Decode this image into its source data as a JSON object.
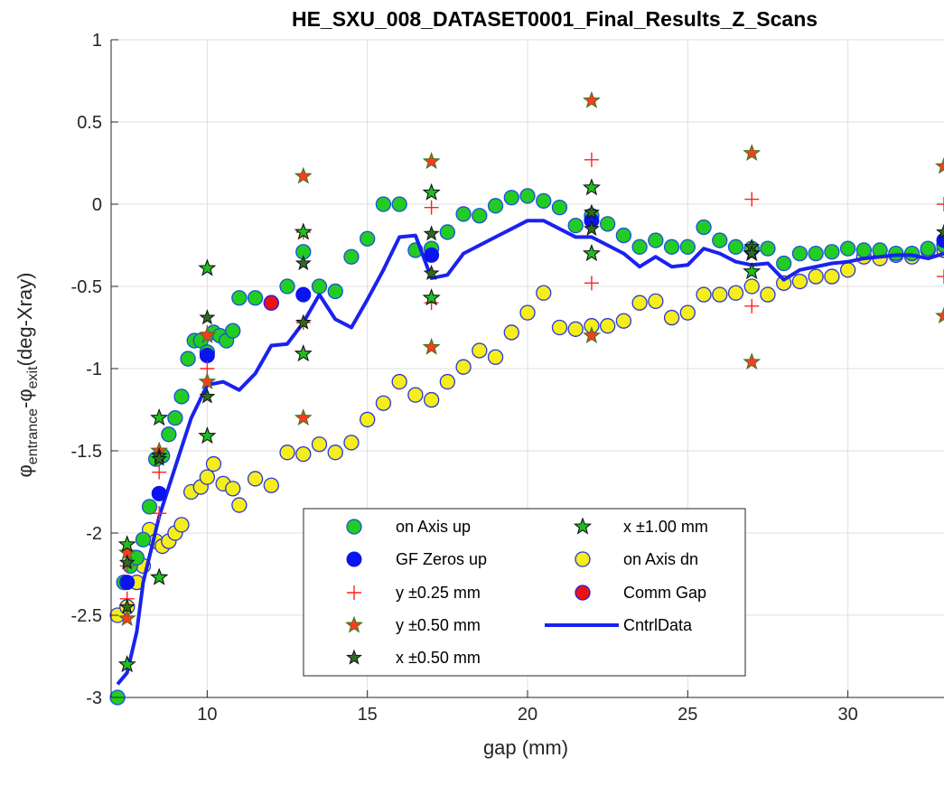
{
  "chart_data": {
    "type": "scatter",
    "title": "HE_SXU_008_DATASET0001_Final_Results_Z_Scans",
    "xlabel": "gap (mm)",
    "ylabel": {
      "main": "φ",
      "sub1": "entrance",
      "minus": "-φ",
      "sub2": "exit",
      "unit": "(deg-Xray)"
    },
    "xlim": [
      7,
      33
    ],
    "ylim": [
      -3,
      1
    ],
    "x_ticks": [
      10,
      15,
      20,
      25,
      30
    ],
    "x_tick_labels": [
      "10",
      "15",
      "20",
      "25",
      "30"
    ],
    "y_ticks": [
      1,
      0.5,
      0,
      -0.5,
      -1,
      -1.5,
      -2,
      -2.5,
      -3
    ],
    "y_tick_labels": [
      "1",
      "0.5",
      "0",
      "-0.5",
      "-1",
      "-1.5",
      "-2",
      "-2.5",
      "-3"
    ],
    "grid": true,
    "legend_position": "lower-center",
    "colors": {
      "on_axis_up": "#22cc22",
      "gf_zeros": "#0a14f0",
      "y_plus": "#ff2020",
      "star_red": "#ff3b1f",
      "star_green": "#1fbf1f",
      "on_axis_dn": "#f5ee1a",
      "comm_gap": "#ee1111",
      "cntrl": "#1a22ee"
    },
    "series": [
      {
        "name": "on Axis up",
        "marker": "circle-green",
        "x": [
          7.2,
          7.4,
          7.6,
          7.8,
          8.0,
          8.2,
          8.4,
          8.6,
          8.8,
          9.0,
          9.2,
          9.4,
          9.6,
          9.8,
          10.0,
          10.2,
          10.4,
          10.6,
          10.8,
          11.0,
          11.5,
          12.0,
          12.5,
          13.0,
          13.5,
          14.0,
          14.5,
          15.0,
          15.5,
          16.0,
          16.5,
          17.0,
          17.5,
          18.0,
          18.5,
          19.0,
          19.5,
          20.0,
          20.5,
          21.0,
          21.5,
          22.0,
          22.5,
          23.0,
          23.5,
          24.0,
          24.5,
          25.0,
          25.5,
          26.0,
          26.5,
          27.0,
          27.5,
          28.0,
          28.5,
          29.0,
          29.5,
          30.0,
          30.5,
          31.0,
          31.5,
          32.0,
          32.5,
          33.0
        ],
        "y": [
          -3.0,
          -2.3,
          -2.2,
          -2.15,
          -2.04,
          -1.84,
          -1.55,
          -1.53,
          -1.4,
          -1.3,
          -1.17,
          -0.94,
          -0.83,
          -0.83,
          -0.9,
          -0.78,
          -0.8,
          -0.83,
          -0.77,
          -0.57,
          -0.57,
          -0.6,
          -0.5,
          -0.29,
          -0.5,
          -0.53,
          -0.32,
          -0.21,
          0.0,
          0.0,
          -0.28,
          -0.27,
          -0.17,
          -0.06,
          -0.07,
          -0.01,
          0.04,
          0.05,
          0.02,
          -0.02,
          -0.13,
          -0.07,
          -0.12,
          -0.19,
          -0.26,
          -0.22,
          -0.26,
          -0.26,
          -0.14,
          -0.22,
          -0.26,
          -0.27,
          -0.27,
          -0.36,
          -0.3,
          -0.3,
          -0.29,
          -0.27,
          -0.28,
          -0.28,
          -0.3,
          -0.3,
          -0.27,
          -0.25
        ]
      },
      {
        "name": "GF Zeros up",
        "marker": "circle-blue",
        "x": [
          7.5,
          8.5,
          10.0,
          13.0,
          17.0,
          22.0,
          33.0
        ],
        "y": [
          -2.3,
          -1.76,
          -0.92,
          -0.55,
          -0.31,
          -0.1,
          -0.22
        ]
      },
      {
        "name": "y ±0.25 mm",
        "marker": "plus-red",
        "x": [
          7.5,
          7.5,
          8.5,
          8.5,
          10.0,
          10.0,
          13.0,
          13.0,
          17.0,
          17.0,
          22.0,
          22.0,
          27.0,
          27.0,
          33.0,
          33.0
        ],
        "y": [
          -2.2,
          -2.4,
          -1.63,
          -1.88,
          -0.78,
          -1.0,
          -0.17,
          -0.72,
          -0.02,
          -0.6,
          0.27,
          -0.48,
          0.03,
          -0.62,
          0.0,
          -0.44
        ]
      },
      {
        "name": "y ±0.50 mm",
        "marker": "star-red",
        "x": [
          7.5,
          7.5,
          8.5,
          8.5,
          10.0,
          10.0,
          13.0,
          13.0,
          17.0,
          17.0,
          22.0,
          22.0,
          27.0,
          27.0,
          33.0,
          33.0
        ],
        "y": [
          -2.12,
          -2.52,
          -1.5,
          -2.27,
          -0.8,
          -1.08,
          0.17,
          -1.3,
          0.26,
          -0.87,
          0.63,
          -0.8,
          0.31,
          -0.96,
          0.23,
          -0.68
        ]
      },
      {
        "name": "x ±0.50 mm",
        "marker": "star-darkgreen",
        "x": [
          7.5,
          7.5,
          8.5,
          8.5,
          10.0,
          10.0,
          13.0,
          13.0,
          17.0,
          17.0,
          22.0,
          22.0,
          27.0,
          27.0,
          33.0
        ],
        "y": [
          -2.18,
          -2.45,
          -1.53,
          -1.55,
          -0.69,
          -1.17,
          -0.36,
          -0.72,
          -0.18,
          -0.42,
          -0.05,
          -0.15,
          -0.26,
          -0.3,
          -0.17
        ]
      },
      {
        "name": "x ±1.00 mm",
        "marker": "star-green",
        "x": [
          7.5,
          7.5,
          8.5,
          8.5,
          10.0,
          10.0,
          13.0,
          13.0,
          17.0,
          17.0,
          22.0,
          22.0,
          27.0,
          27.0
        ],
        "y": [
          -2.07,
          -2.8,
          -1.3,
          -2.27,
          -0.39,
          -1.41,
          -0.17,
          -0.91,
          0.07,
          -0.57,
          0.1,
          -0.3,
          -0.3,
          -0.41
        ]
      },
      {
        "name": "on Axis dn",
        "marker": "circle-yellow",
        "x": [
          7.2,
          7.5,
          7.8,
          8.0,
          8.2,
          8.4,
          8.6,
          8.8,
          9.0,
          9.2,
          9.5,
          9.8,
          10.0,
          10.2,
          10.5,
          10.8,
          11.0,
          11.5,
          12.0,
          12.5,
          13.0,
          13.5,
          14.0,
          14.5,
          15.0,
          15.5,
          16.0,
          16.5,
          17.0,
          17.5,
          18.0,
          18.5,
          19.0,
          19.5,
          20.0,
          20.5,
          21.0,
          21.5,
          22.0,
          22.5,
          23.0,
          23.5,
          24.0,
          24.5,
          25.0,
          25.5,
          26.0,
          26.5,
          27.0,
          27.5,
          28.0,
          28.5,
          29.0,
          29.5,
          30.0,
          30.5,
          31.0,
          31.5,
          32.0,
          32.5,
          33.0
        ],
        "y": [
          -2.5,
          -2.45,
          -2.3,
          -2.2,
          -1.98,
          -2.05,
          -2.08,
          -2.05,
          -2.0,
          -1.95,
          -1.75,
          -1.72,
          -1.66,
          -1.58,
          -1.7,
          -1.73,
          -1.83,
          -1.67,
          -1.71,
          -1.51,
          -1.52,
          -1.46,
          -1.51,
          -1.45,
          -1.31,
          -1.21,
          -1.08,
          -1.16,
          -1.19,
          -1.08,
          -0.99,
          -0.89,
          -0.93,
          -0.78,
          -0.66,
          -0.54,
          -0.75,
          -0.76,
          -0.74,
          -0.74,
          -0.71,
          -0.6,
          -0.59,
          -0.69,
          -0.66,
          -0.55,
          -0.55,
          -0.54,
          -0.5,
          -0.55,
          -0.48,
          -0.47,
          -0.44,
          -0.44,
          -0.4,
          -0.32,
          -0.33,
          -0.31,
          -0.32,
          -0.28,
          -0.28
        ]
      },
      {
        "name": "Comm Gap",
        "marker": "circle-red",
        "x": [
          12.0
        ],
        "y": [
          -0.6
        ]
      },
      {
        "name": "CntrlData",
        "marker": "line-blue",
        "x": [
          7.2,
          7.5,
          7.8,
          8.0,
          8.5,
          9.0,
          9.5,
          10.0,
          10.5,
          11.0,
          11.5,
          12.0,
          12.5,
          13.0,
          13.5,
          14.0,
          14.5,
          15.0,
          15.5,
          16.0,
          16.5,
          17.0,
          17.5,
          18.0,
          18.5,
          19.0,
          19.5,
          20.0,
          20.5,
          21.0,
          21.5,
          22.0,
          22.5,
          23.0,
          23.5,
          24.0,
          24.5,
          25.0,
          25.5,
          26.0,
          26.5,
          27.0,
          27.5,
          28.0,
          28.5,
          29.0,
          29.5,
          30.0,
          30.5,
          31.0,
          31.5,
          32.0,
          32.5,
          33.0
        ],
        "y": [
          -2.92,
          -2.85,
          -2.6,
          -2.3,
          -1.9,
          -1.6,
          -1.3,
          -1.1,
          -1.08,
          -1.13,
          -1.03,
          -0.86,
          -0.85,
          -0.72,
          -0.55,
          -0.7,
          -0.75,
          -0.58,
          -0.4,
          -0.2,
          -0.19,
          -0.45,
          -0.43,
          -0.3,
          -0.25,
          -0.2,
          -0.15,
          -0.1,
          -0.1,
          -0.15,
          -0.2,
          -0.2,
          -0.25,
          -0.3,
          -0.38,
          -0.32,
          -0.38,
          -0.37,
          -0.27,
          -0.3,
          -0.35,
          -0.37,
          -0.36,
          -0.46,
          -0.4,
          -0.38,
          -0.36,
          -0.35,
          -0.33,
          -0.32,
          -0.31,
          -0.31,
          -0.33,
          -0.3
        ]
      }
    ]
  }
}
